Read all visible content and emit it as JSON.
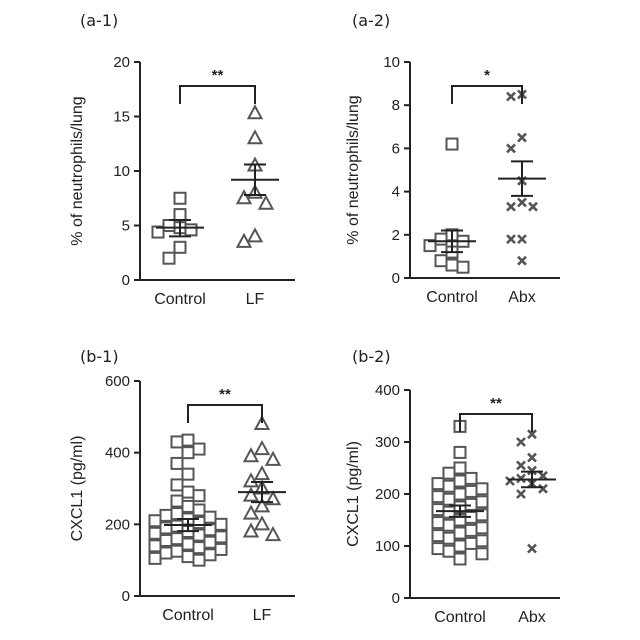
{
  "chart_data": [
    {
      "panel_label": "(a-1)",
      "type": "scatter",
      "ylabel": "% of neutrophils/lung",
      "ylim": [
        0,
        20
      ],
      "yticks": [
        "0",
        "5",
        "10",
        "15",
        "20"
      ],
      "categories": [
        "Control",
        "LF"
      ],
      "marker": [
        "square",
        "triangle"
      ],
      "groups": [
        {
          "name": "Control",
          "values": [
            7.5,
            6.0,
            5.0,
            4.8,
            4.6,
            4.4,
            3.0,
            2.0
          ],
          "mean": 4.8,
          "sem_upper": 5.5,
          "sem_lower": 4.0
        },
        {
          "name": "LF",
          "values": [
            15.3,
            13.0,
            10.5,
            8.0,
            7.5,
            7.0,
            4.0,
            3.5
          ],
          "mean": 9.2,
          "sem_upper": 10.6,
          "sem_lower": 7.8
        }
      ],
      "significance": "**"
    },
    {
      "panel_label": "(a-2)",
      "type": "scatter",
      "ylabel": "% of neutrophils/lung",
      "ylim": [
        0,
        10
      ],
      "yticks": [
        "0",
        "2",
        "4",
        "6",
        "8",
        "10"
      ],
      "categories": [
        "Control",
        "Abx"
      ],
      "marker": [
        "square",
        "cross"
      ],
      "groups": [
        {
          "name": "Control",
          "values": [
            6.2,
            2.0,
            1.8,
            1.7,
            1.5,
            1.2,
            0.8,
            0.6,
            0.5
          ],
          "mean": 1.7,
          "sem_upper": 2.2,
          "sem_lower": 1.2
        },
        {
          "name": "Abx",
          "values": [
            8.5,
            8.4,
            6.5,
            6.0,
            4.5,
            3.5,
            3.3,
            3.3,
            1.8,
            1.8,
            0.8
          ],
          "mean": 4.6,
          "sem_upper": 5.4,
          "sem_lower": 3.8
        }
      ],
      "significance": "*"
    },
    {
      "panel_label": "(b-1)",
      "type": "scatter",
      "ylabel": "CXCL1 (pg/ml)",
      "ylim": [
        0,
        600
      ],
      "yticks": [
        "0",
        "200",
        "400",
        "600"
      ],
      "categories": [
        "Control",
        "LF"
      ],
      "marker": [
        "square",
        "triangle"
      ],
      "groups": [
        {
          "name": "Control",
          "values": [
            435,
            430,
            410,
            400,
            370,
            340,
            310,
            290,
            280,
            265,
            250,
            240,
            230,
            225,
            220,
            215,
            210,
            205,
            200,
            195,
            190,
            185,
            180,
            175,
            170,
            165,
            160,
            155,
            150,
            145,
            140,
            135,
            130,
            125,
            120,
            115,
            110,
            105,
            100
          ],
          "mean": 198,
          "sem_upper": 215,
          "sem_lower": 181
        },
        {
          "name": "LF",
          "values": [
            480,
            410,
            390,
            380,
            340,
            320,
            300,
            280,
            270,
            250,
            230,
            200,
            180,
            170
          ],
          "mean": 290,
          "sem_upper": 318,
          "sem_lower": 262
        }
      ],
      "significance": "**"
    },
    {
      "panel_label": "(b-2)",
      "type": "scatter",
      "ylabel": "CXCL1 (pg/ml)",
      "ylim": [
        0,
        400
      ],
      "yticks": [
        "0",
        "100",
        "200",
        "300",
        "400"
      ],
      "categories": [
        "Control",
        "Abx"
      ],
      "marker": [
        "square",
        "cross"
      ],
      "groups": [
        {
          "name": "Control",
          "values": [
            330,
            280,
            250,
            240,
            230,
            225,
            220,
            215,
            210,
            205,
            200,
            195,
            190,
            185,
            180,
            175,
            170,
            165,
            160,
            155,
            150,
            145,
            140,
            135,
            130,
            125,
            120,
            115,
            110,
            105,
            100,
            95,
            90,
            85,
            75
          ],
          "mean": 167,
          "sem_upper": 178,
          "sem_lower": 156
        },
        {
          "name": "Abx",
          "values": [
            315,
            300,
            270,
            255,
            245,
            235,
            230,
            225,
            220,
            210,
            200,
            95
          ],
          "mean": 228,
          "sem_upper": 243,
          "sem_lower": 213
        }
      ],
      "significance": "**"
    }
  ]
}
